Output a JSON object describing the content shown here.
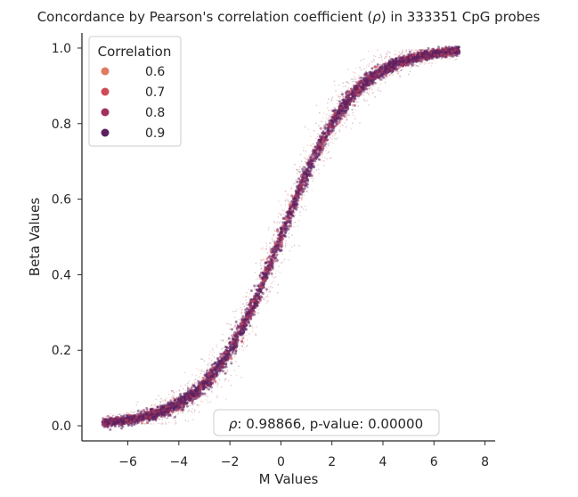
{
  "chart_data": {
    "type": "scatter",
    "title_prefix": "Concordance by Pearson's correlation coefficient (",
    "title_symbol": "ρ",
    "title_suffix": ") in 333351 CpG probes",
    "xlabel": "M Values",
    "ylabel": "Beta Values",
    "xlim": [
      -7.8,
      8.4
    ],
    "ylim": [
      -0.04,
      1.04
    ],
    "xticks": [
      -6,
      -4,
      -2,
      0,
      2,
      4,
      6,
      8
    ],
    "xtick_labels": [
      "−6",
      "−4",
      "−2",
      "0",
      "2",
      "4",
      "6",
      "8"
    ],
    "yticks": [
      0.0,
      0.2,
      0.4,
      0.6,
      0.8,
      1.0
    ],
    "ytick_labels": [
      "0.0",
      "0.2",
      "0.4",
      "0.6",
      "0.8",
      "1.0"
    ],
    "grid": false,
    "relationship": "sigmoid, beta = 2^M / (2^M + 1)",
    "x_range_of_points": [
      -7,
      7
    ],
    "legend": {
      "title": "Correlation",
      "placement": "upper-left",
      "entries": [
        {
          "label": "0.6",
          "color": "#e07a5f"
        },
        {
          "label": "0.7",
          "color": "#cf4a57"
        },
        {
          "label": "0.8",
          "color": "#a1315f"
        },
        {
          "label": "0.9",
          "color": "#5c2060"
        }
      ]
    },
    "annotation": {
      "symbol": "ρ",
      "text": ": 0.98866, p-value: 0.00000",
      "placement": "bottom-center"
    }
  }
}
